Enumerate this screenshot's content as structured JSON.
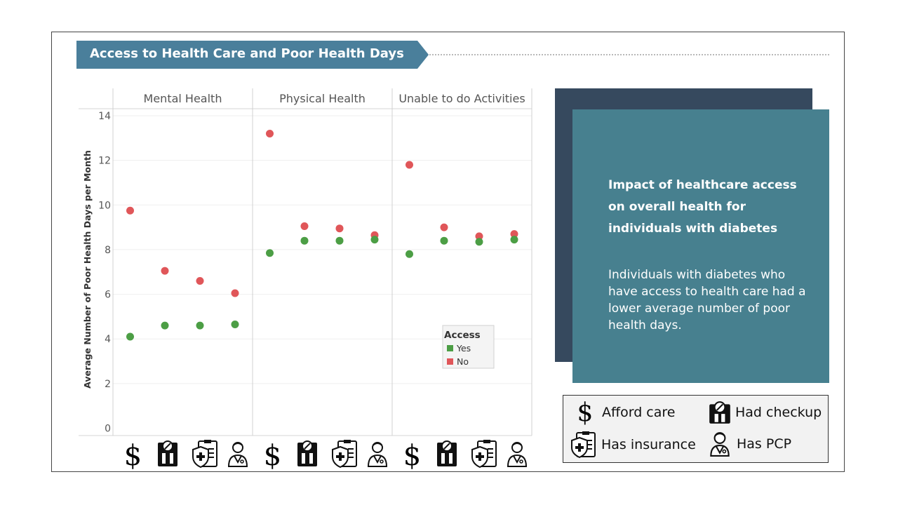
{
  "title": "Access to Health Care and Poor Health Days",
  "card": {
    "heading": "Impact of healthcare access on overall health for individuals with diabetes",
    "body": "Individuals with diabetes who have access to health care had a lower average number of poor health days."
  },
  "icon_legend": [
    {
      "icon": "dollar-icon",
      "label": "Afford care"
    },
    {
      "icon": "checkup-icon",
      "label": "Had checkup"
    },
    {
      "icon": "insurance-icon",
      "label": "Has insurance"
    },
    {
      "icon": "doctor-icon",
      "label": "Has PCP"
    }
  ],
  "colors": {
    "yes": "#4c9e45",
    "no": "#e05659",
    "banner": "#4a7f9b",
    "card_front": "#47808f",
    "card_back": "#36495e"
  },
  "chart_data": {
    "type": "scatter",
    "ylabel": "Average Number of Poor Health Days per Month",
    "ylim": [
      0,
      14
    ],
    "yticks": [
      0,
      2,
      4,
      6,
      8,
      10,
      12,
      14
    ],
    "categories": [
      "Afford care",
      "Had checkup",
      "Has insurance",
      "Has PCP"
    ],
    "category_icons": [
      "dollar-icon",
      "checkup-icon",
      "insurance-icon",
      "doctor-icon"
    ],
    "panels": [
      {
        "name": "Mental Health",
        "yes": [
          4.1,
          4.6,
          4.6,
          4.65
        ],
        "no": [
          9.75,
          7.05,
          6.6,
          6.05
        ]
      },
      {
        "name": "Physical Health",
        "yes": [
          7.85,
          8.4,
          8.4,
          8.45
        ],
        "no": [
          13.2,
          9.05,
          8.95,
          8.65
        ]
      },
      {
        "name": "Unable to do Activities",
        "yes": [
          7.8,
          8.4,
          8.35,
          8.45
        ],
        "no": [
          11.8,
          9.0,
          8.6,
          8.7
        ]
      }
    ],
    "legend": {
      "title": "Access",
      "items": [
        "Yes",
        "No"
      ],
      "placement": "inside, lower-right of last panel"
    },
    "grid": true
  }
}
